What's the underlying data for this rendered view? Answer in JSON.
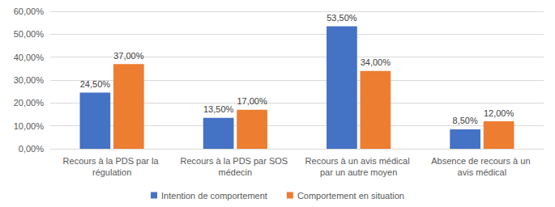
{
  "chart_data": {
    "type": "bar",
    "categories": [
      "Recours à la PDS par la régulation",
      "Recours à la PDS par SOS médecin",
      "Recours à un avis médical par un autre moyen",
      "Absence de recours à un avis médical"
    ],
    "series": [
      {
        "name": "Intention de comportement",
        "color": "#4472c4",
        "values": [
          24.5,
          13.5,
          53.5,
          8.5
        ],
        "value_labels": [
          "24,50%",
          "13,50%",
          "53,50%",
          "8,50%"
        ]
      },
      {
        "name": "Comportement en situation",
        "color": "#ed7d31",
        "values": [
          37,
          17,
          34,
          12
        ],
        "value_labels": [
          "37,00%",
          "17,00%",
          "34,00%",
          "12,00%"
        ]
      }
    ],
    "ylim": [
      0,
      60
    ],
    "yticks": [
      {
        "value": 0,
        "label": "0,00%"
      },
      {
        "value": 10,
        "label": "10,00%"
      },
      {
        "value": 20,
        "label": "20,00%"
      },
      {
        "value": 30,
        "label": "30,00%"
      },
      {
        "value": 40,
        "label": "40,00%"
      },
      {
        "value": 50,
        "label": "50,00%"
      },
      {
        "value": 60,
        "label": "60,00%"
      }
    ],
    "grid": true,
    "legend": "bottom",
    "data_labels": true
  }
}
